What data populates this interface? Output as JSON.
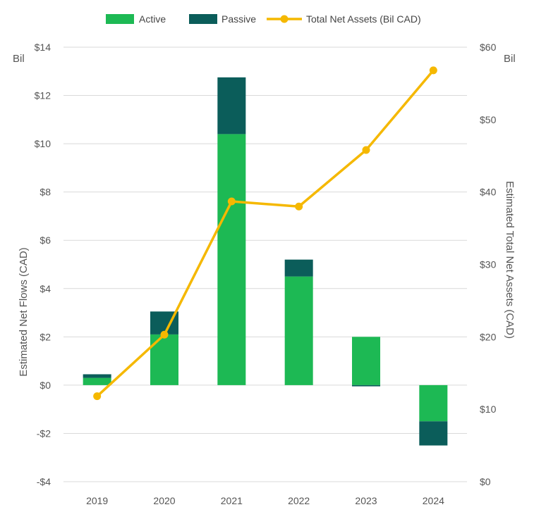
{
  "chart_data": {
    "type": "bar",
    "categories": [
      "2019",
      "2020",
      "2021",
      "2022",
      "2023",
      "2024"
    ],
    "series": [
      {
        "name": "Active",
        "type": "stacked-bar",
        "axis": "left",
        "color": "#1db954",
        "values": [
          0.3,
          2.1,
          10.4,
          4.5,
          2.0,
          -1.5
        ]
      },
      {
        "name": "Passive",
        "type": "stacked-bar",
        "axis": "left",
        "color": "#0b5d5a",
        "values": [
          0.15,
          0.95,
          2.35,
          0.7,
          -0.05,
          -1.0
        ]
      },
      {
        "name": "Total Net Assets (Bil CAD)",
        "type": "line",
        "axis": "right",
        "color": "#f5b800",
        "values": [
          11.8,
          20.3,
          38.7,
          38.0,
          45.8,
          56.8
        ]
      }
    ],
    "left_axis": {
      "label": "Estimated Net Flows (CAD)",
      "unit_label": "Bil",
      "min": -4,
      "max": 14,
      "ticks": [
        -4,
        -2,
        0,
        2,
        4,
        6,
        8,
        10,
        12,
        14
      ],
      "tick_labels": [
        "-$4",
        "-$2",
        "$0",
        "$2",
        "$4",
        "$6",
        "$8",
        "$10",
        "$12",
        "$14"
      ]
    },
    "right_axis": {
      "label": "Estimated Total Net Assets (CAD)",
      "unit_label": "Bil",
      "min": 0,
      "max": 60,
      "ticks": [
        0,
        10,
        20,
        30,
        40,
        50,
        60
      ],
      "tick_labels": [
        "$0",
        "$10",
        "$20",
        "$30",
        "$40",
        "$50",
        "$60"
      ]
    },
    "legend": [
      "Active",
      "Passive",
      "Total Net Assets (Bil CAD)"
    ],
    "legend_position": "top",
    "grid": true
  }
}
